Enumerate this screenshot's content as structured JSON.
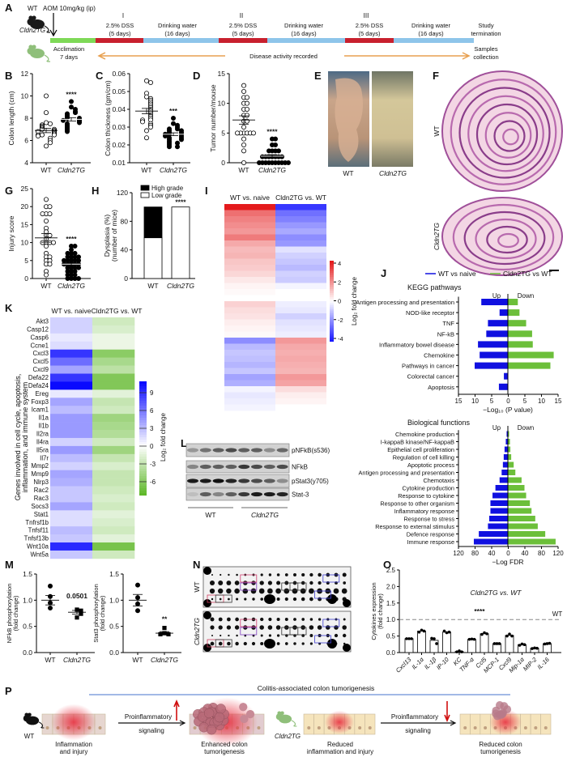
{
  "panels": [
    "A",
    "B",
    "C",
    "D",
    "E",
    "F",
    "G",
    "H",
    "I",
    "J",
    "K",
    "L",
    "M",
    "N",
    "O",
    "P"
  ],
  "timeline": {
    "wt_label": "WT",
    "tg_label": "Cldn2TG",
    "aom": "AOM 10mg/kg (ip)",
    "cycles": [
      "I",
      "II",
      "III"
    ],
    "dss": [
      "2.5% DSS",
      "(5 days)"
    ],
    "water": [
      "Drinking water",
      "(16 days)"
    ],
    "acclimation": [
      "Acclimation",
      "7 days"
    ],
    "termination": [
      "Study",
      "termination"
    ],
    "samples": [
      "Samples",
      "collection"
    ],
    "disease": "Disease activity recorded",
    "colors": {
      "acclimation": "#7ed957",
      "dss": "#c8202e",
      "water": "#8ec5ea",
      "arrow": "#e8a050",
      "wt_mouse": "#1a1a1a",
      "tg_mouse": "#8fbf7a"
    }
  },
  "photos": {
    "E": [
      "WT",
      "Cldn2TG"
    ],
    "F": [
      "WT",
      "Cldn2TG"
    ]
  },
  "blot_L": {
    "bands": [
      "pNFkB(s536)",
      "NFkB",
      "pStat3(y705)",
      "Stat-3"
    ],
    "groups": [
      "WT",
      "Cldn2TG"
    ]
  },
  "array_N": {
    "groups": [
      "WT",
      "Cldn2TG"
    ]
  },
  "schematic_P": {
    "title": "Colitis-associated colon tumorigenesis",
    "wt": "WT",
    "tg": "Cldn2TG",
    "signal": [
      "Proinflammatory",
      "signaling"
    ],
    "wt_state": [
      "Inflammation",
      "and injury"
    ],
    "wt_outcome": [
      "Enhanced colon",
      "tumorigenesis"
    ],
    "tg_state": [
      "Reduced",
      "inflammation and injury"
    ],
    "tg_outcome": [
      "Reduced colon",
      "tumorigenesis"
    ],
    "colors": {
      "line": "#6a8fd8",
      "arrow": "#d01010"
    }
  },
  "chart_data": [
    {
      "panel": "B",
      "type": "scatter",
      "ylabel": "Colon length (cm)",
      "categories": [
        "WT",
        "Cldn2TG"
      ],
      "ylim": [
        4,
        12
      ],
      "yticks": [
        "4",
        "6",
        "8",
        "10",
        "12"
      ],
      "series": [
        {
          "category": "WT",
          "marker": "open",
          "values": [
            10,
            8.5,
            7.6,
            7.5,
            7.4,
            7.3,
            7.2,
            7.1,
            7,
            7,
            6.9,
            6.8,
            6.8,
            6.7,
            6.6,
            6.5,
            6.5,
            6.5,
            6.4,
            6.2,
            6,
            5.8,
            5.5
          ],
          "mean": 6.9,
          "sem": 0.2
        },
        {
          "category": "Cldn2TG",
          "marker": "filled",
          "values": [
            9.5,
            9,
            8.8,
            8.6,
            8.5,
            8.4,
            8.3,
            8.2,
            8.1,
            8,
            8,
            7.9,
            7.8,
            7.8,
            7.7,
            7.6,
            7.5,
            7.4,
            7.3,
            7.2,
            7.1,
            7,
            6.9,
            6.8
          ],
          "mean": 7.9,
          "sem": 0.15
        }
      ],
      "significance": "****"
    },
    {
      "panel": "C",
      "type": "scatter",
      "ylabel": "Colon thickness (gm/cm)",
      "categories": [
        "WT",
        "Cldn2TG"
      ],
      "ylim": [
        0.01,
        0.06
      ],
      "yticks": [
        "0.01",
        "0.02",
        "0.03",
        "0.04",
        "0.05",
        "0.06"
      ],
      "series": [
        {
          "category": "WT",
          "marker": "open",
          "values": [
            0.056,
            0.055,
            0.049,
            0.047,
            0.046,
            0.045,
            0.044,
            0.043,
            0.042,
            0.041,
            0.04,
            0.039,
            0.038,
            0.037,
            0.036,
            0.035,
            0.034,
            0.034,
            0.033,
            0.032,
            0.031,
            0.03,
            0.028,
            0.024
          ],
          "mean": 0.039,
          "sem": 0.0015
        },
        {
          "category": "Cldn2TG",
          "marker": "filled",
          "values": [
            0.035,
            0.032,
            0.031,
            0.03,
            0.029,
            0.029,
            0.028,
            0.028,
            0.027,
            0.027,
            0.026,
            0.026,
            0.026,
            0.025,
            0.025,
            0.024,
            0.024,
            0.023,
            0.023,
            0.022,
            0.021,
            0.021,
            0.02,
            0.019,
            0.019
          ],
          "mean": 0.026,
          "sem": 0.0008
        }
      ],
      "significance": "***"
    },
    {
      "panel": "D",
      "type": "scatter",
      "ylabel": "Tumor number/mouse",
      "categories": [
        "WT",
        "Cldn2TG"
      ],
      "ylim": [
        0,
        15
      ],
      "yticks": [
        "0",
        "5",
        "10",
        "15"
      ],
      "series": [
        {
          "category": "WT",
          "marker": "open",
          "values": [
            13,
            12,
            11,
            11,
            10,
            10,
            9,
            9,
            8,
            8,
            7,
            7,
            6,
            5,
            5,
            5,
            5,
            5,
            5,
            4,
            3,
            2,
            0
          ],
          "mean": 7.2,
          "sem": 0.7
        },
        {
          "category": "Cldn2TG",
          "marker": "filled",
          "values": [
            4,
            4,
            3,
            3,
            2,
            2,
            2,
            2,
            1,
            1,
            1,
            1,
            1,
            1,
            1,
            0,
            0,
            0,
            0,
            0,
            0,
            0,
            0,
            0,
            0
          ],
          "mean": 1.1,
          "sem": 0.25
        }
      ],
      "significance": "****"
    },
    {
      "panel": "G",
      "type": "scatter",
      "ylabel": "Injury score",
      "categories": [
        "WT",
        "Cldn2TG"
      ],
      "ylim": [
        0,
        25
      ],
      "yticks": [
        "0",
        "5",
        "10",
        "15",
        "20",
        "25"
      ],
      "series": [
        {
          "category": "WT",
          "marker": "open",
          "values": [
            22,
            20,
            20,
            18,
            18,
            18,
            16,
            14,
            13,
            12,
            12,
            11,
            10,
            10,
            10,
            10,
            9,
            7,
            6,
            6,
            5,
            5,
            4,
            4,
            2,
            1
          ],
          "mean": 11.3,
          "sem": 1.2
        },
        {
          "category": "Cldn2TG",
          "marker": "filled",
          "values": [
            9,
            9,
            8,
            7,
            7,
            7,
            6,
            6,
            6,
            6,
            5,
            5,
            5,
            5,
            5,
            4,
            4,
            4,
            4,
            4,
            3,
            3,
            3,
            3,
            2,
            2,
            2,
            1,
            1,
            1,
            0,
            0,
            0,
            0
          ],
          "mean": 4,
          "sem": 0.4
        }
      ],
      "significance": "****"
    },
    {
      "panel": "H",
      "type": "bar",
      "stacked": true,
      "ylabel": [
        "Dysplasia (%)",
        "(number of mice)"
      ],
      "categories": [
        "WT",
        "Cldn2TG"
      ],
      "ylim": [
        0,
        120
      ],
      "yticks": [
        "0",
        "40",
        "80",
        "120"
      ],
      "series": [
        {
          "name": "Low grade",
          "values": [
            57,
            100
          ],
          "color": "#ffffff"
        },
        {
          "name": "High grade",
          "values": [
            43,
            0
          ],
          "color": "#000000"
        }
      ],
      "legend": "top-right",
      "significance": "****"
    },
    {
      "panel": "I",
      "type": "heatmap",
      "columns": [
        "WT vs. naive",
        "Cldn2TG vs. WT"
      ],
      "colorbar": {
        "label": "Log₂ fold change",
        "ticks": [
          "4",
          "2",
          "0",
          "-2",
          "-4"
        ],
        "range": [
          -4,
          4
        ],
        "colors": {
          "high": "#e41a1c",
          "mid": "#ffffff",
          "low": "#1a1aff"
        }
      },
      "rows": [
        [
          4,
          -3.5
        ],
        [
          2.5,
          -2.5
        ],
        [
          2.2,
          -2.2
        ],
        [
          2,
          -1.8
        ],
        [
          1.8,
          -1.5
        ],
        [
          2.3,
          -2
        ],
        [
          1.5,
          -1.8
        ],
        [
          1.2,
          -0.5
        ],
        [
          1.3,
          -0.8
        ],
        [
          1,
          -1
        ],
        [
          0.9,
          -1.2
        ],
        [
          0.7,
          -0.8
        ],
        [
          0.4,
          -0.9
        ],
        [
          0.2,
          -0.2
        ],
        [
          0.1,
          0
        ],
        [
          0,
          0
        ],
        [
          0.8,
          -0.3
        ],
        [
          0.6,
          -0.4
        ],
        [
          0.5,
          -0.8
        ],
        [
          0.3,
          -0.5
        ],
        [
          0.2,
          -0.4
        ],
        [
          0.1,
          -0.3
        ],
        [
          -2,
          1.8
        ],
        [
          -1.2,
          1.5
        ],
        [
          -1,
          1.4
        ],
        [
          -1.1,
          1.5
        ],
        [
          -1.3,
          1.4
        ],
        [
          -1,
          1.3
        ],
        [
          -1.6,
          1.8
        ],
        [
          -1.4,
          1.6
        ],
        [
          -0.2,
          0.6
        ],
        [
          -0.4,
          0.3
        ],
        [
          -0.3,
          0.2
        ],
        [
          -0.2,
          0
        ]
      ]
    },
    {
      "panel": "J",
      "type": "bar",
      "orientation": "horizontal",
      "diverging": true,
      "title": "KEGG pathways",
      "title_color": "#d020d0",
      "legend": [
        "WT vs naive",
        "Cldn2TG vs WT"
      ],
      "legend_placement": "top",
      "side_labels": [
        "Up",
        "Down"
      ],
      "xlabel": "−Log₁₀ (P value)",
      "xlim": [
        -15,
        15
      ],
      "xticks": [
        "15",
        "10",
        "5",
        "0",
        "5",
        "10",
        "15"
      ],
      "categories": [
        "Antigen processing and presentation",
        "NOD-like receptor",
        "TNF",
        "NF-kB",
        "Inflammatory bowel disease",
        "Chemokine",
        "Pathways in cancer",
        "Colorectal cancer",
        "Apoptosis"
      ],
      "series": [
        {
          "name": "WT vs naive",
          "side": "left",
          "color": "#1010e0",
          "values": [
            8,
            2.5,
            6,
            6.5,
            9,
            8.5,
            10,
            1.2,
            2.7
          ]
        },
        {
          "name": "Cldn2TG vs WT",
          "side": "right",
          "color": "#6cbf3a",
          "values": [
            3,
            3.5,
            5.5,
            7.3,
            7.5,
            13.8,
            12.8,
            0,
            0
          ]
        }
      ]
    },
    {
      "panel": "J",
      "type": "bar",
      "orientation": "horizontal",
      "diverging": true,
      "title": "Biological functions",
      "title_color": "#d020d0",
      "side_labels": [
        "Up",
        "Down"
      ],
      "xlabel": "−Log FDR",
      "xlim": [
        -120,
        120
      ],
      "xticks": [
        "120",
        "80",
        "40",
        "0",
        "40",
        "80",
        "120"
      ],
      "categories": [
        "Chemokine production",
        "I-kappaB kinase/NF-kappaB",
        "Epithelial cell proliferation",
        "Regulation of cell killing",
        "Apoptotic process",
        "Antigen processing and presentation",
        "Chemotaxis",
        "Cytokine production",
        "Response to cytokine",
        "Response to other organism",
        "Inflammatory response",
        "Response to stress",
        "Response to external stimulus",
        "Defence response",
        "Immune response"
      ],
      "series": [
        {
          "name": "WT vs naive",
          "side": "left",
          "color": "#1010e0",
          "values": [
            3,
            5,
            8,
            10,
            12,
            15,
            20,
            30,
            37,
            42,
            42,
            45,
            48,
            70,
            82
          ]
        },
        {
          "name": "Cldn2TG vs WT",
          "side": "right",
          "color": "#6cbf3a",
          "values": [
            3,
            5,
            6,
            8,
            14,
            18,
            33,
            40,
            44,
            53,
            57,
            66,
            72,
            90,
            115
          ]
        }
      ]
    },
    {
      "panel": "K",
      "type": "heatmap",
      "columns": [
        "WT vs. naive",
        "Cldn2TG vs. WT"
      ],
      "ylabel": [
        "Genes involved in cell cycle, apoptosis,",
        "inflammation, and immune system"
      ],
      "colorbar": {
        "label": "Log₂ fold change",
        "ticks": [
          "9",
          "6",
          "3",
          "0",
          "-3",
          "-6"
        ],
        "colors": {
          "high": "#0a0aff",
          "mid": "#ffffff",
          "low": "#5fb82a"
        }
      },
      "genes": [
        "Akt3",
        "Casp12",
        "Casp6",
        "Ccne1",
        "Cxcl3",
        "Cxcl5",
        "Cxcl9",
        "Defa22",
        "Defa24",
        "Ereg",
        "Foxp3",
        "Icam1",
        "Il1a",
        "Il1b",
        "Il2ra",
        "Il4ra",
        "Il5ra",
        "Il7r",
        "Mmp2",
        "Mmp9",
        "Nlrp3",
        "Rac2",
        "Rac3",
        "Socs3",
        "Stat1",
        "Tnfrsf1b",
        "Tnfsf11",
        "Tnfsf13b",
        "Wnt10a",
        "Wnt5a"
      ],
      "series": [
        {
          "column": "WT vs. naive",
          "values": [
            2,
            2,
            1,
            1.5,
            9,
            6.5,
            4,
            9,
            11,
            1,
            4,
            3,
            4.5,
            4.5,
            4.5,
            2,
            4.5,
            3,
            2,
            4,
            3.5,
            2.5,
            2.5,
            4,
            1.5,
            1.5,
            3,
            2.5,
            9.5,
            2.5
          ]
        },
        {
          "column": "Cldn2TG vs. WT",
          "values": [
            -2.5,
            -2,
            -1,
            -1,
            -6,
            -4.5,
            -3.5,
            -6.5,
            -6.5,
            -1.5,
            -3,
            -2.5,
            -5,
            -4.5,
            -4,
            -2.5,
            -5,
            -3,
            -2,
            -3,
            -3,
            -2.5,
            -2,
            -2.5,
            -1.5,
            -2,
            -2.5,
            -1.5,
            -7,
            -2.5
          ]
        }
      ]
    },
    {
      "panel": "M",
      "type": "scatter",
      "ylabel": [
        "NFkB phosphorylation",
        "(fold change)"
      ],
      "categories": [
        "WT",
        "Cldn2TG"
      ],
      "ylim": [
        0,
        1.5
      ],
      "yticks": [
        "0.0",
        "0.5",
        "1.0",
        "1.5"
      ],
      "series": [
        {
          "category": "WT",
          "marker": "circle",
          "values": [
            1.27,
            1.07,
            0.95,
            0.85
          ],
          "mean": 1.0,
          "sem": 0.09
        },
        {
          "category": "Cldn2TG",
          "marker": "square",
          "values": [
            0.82,
            0.8,
            0.74,
            0.67
          ],
          "mean": 0.77,
          "sem": 0.035
        }
      ],
      "significance": "0.0501"
    },
    {
      "panel": "M",
      "type": "scatter",
      "ylabel": [
        "Stat3 phosphorylation",
        "(fold change)"
      ],
      "categories": [
        "WT",
        "Cldn2TG"
      ],
      "ylim": [
        0,
        1.5
      ],
      "yticks": [
        "0.0",
        "0.5",
        "1.0",
        "1.5"
      ],
      "series": [
        {
          "category": "WT",
          "marker": "circle",
          "values": [
            1.29,
            1.05,
            0.93,
            0.8
          ],
          "mean": 1.0,
          "sem": 0.11
        },
        {
          "category": "Cldn2TG",
          "marker": "square",
          "values": [
            0.47,
            0.37,
            0.35,
            0.35
          ],
          "mean": 0.37,
          "sem": 0.03
        }
      ],
      "significance": "**"
    },
    {
      "panel": "O",
      "type": "bar",
      "title": "Cldn2TG vs. WT",
      "ylabel": [
        "Cytokines expression",
        "(fold change)"
      ],
      "ylim": [
        0,
        2.5
      ],
      "yticks": [
        "0.0",
        "0.5",
        "1.0",
        "1.5",
        "2.0",
        "2.5"
      ],
      "reference": {
        "value": 1.0,
        "label": "WT",
        "style": "dashed"
      },
      "significance": "****",
      "categories": [
        "Cxcl13",
        "IL-1α",
        "IL-1β",
        "IP-10",
        "KC",
        "TNF-α",
        "Ccl5",
        "MCP-1",
        "Cxcl9",
        "Mip-1α",
        "MIP-2",
        "IL-16"
      ],
      "values": [
        0.42,
        0.65,
        0.37,
        0.62,
        0.03,
        0.4,
        0.57,
        0.27,
        0.52,
        0.24,
        0.13,
        0.27
      ],
      "points": [
        [
          0.42,
          0.42,
          0.42
        ],
        [
          0.62,
          0.68,
          0.65
        ],
        [
          0.43,
          0.42,
          0.27
        ],
        [
          0.65,
          0.6,
          0.62
        ],
        [
          0.02,
          0.05,
          0.02
        ],
        [
          0.4,
          0.41,
          0.4
        ],
        [
          0.55,
          0.6,
          0.57
        ],
        [
          0.27,
          0.27,
          0.27
        ],
        [
          0.5,
          0.56,
          0.5
        ],
        [
          0.22,
          0.26,
          0.24
        ],
        [
          0.12,
          0.14,
          0.13
        ],
        [
          0.26,
          0.27,
          0.28
        ]
      ]
    }
  ]
}
